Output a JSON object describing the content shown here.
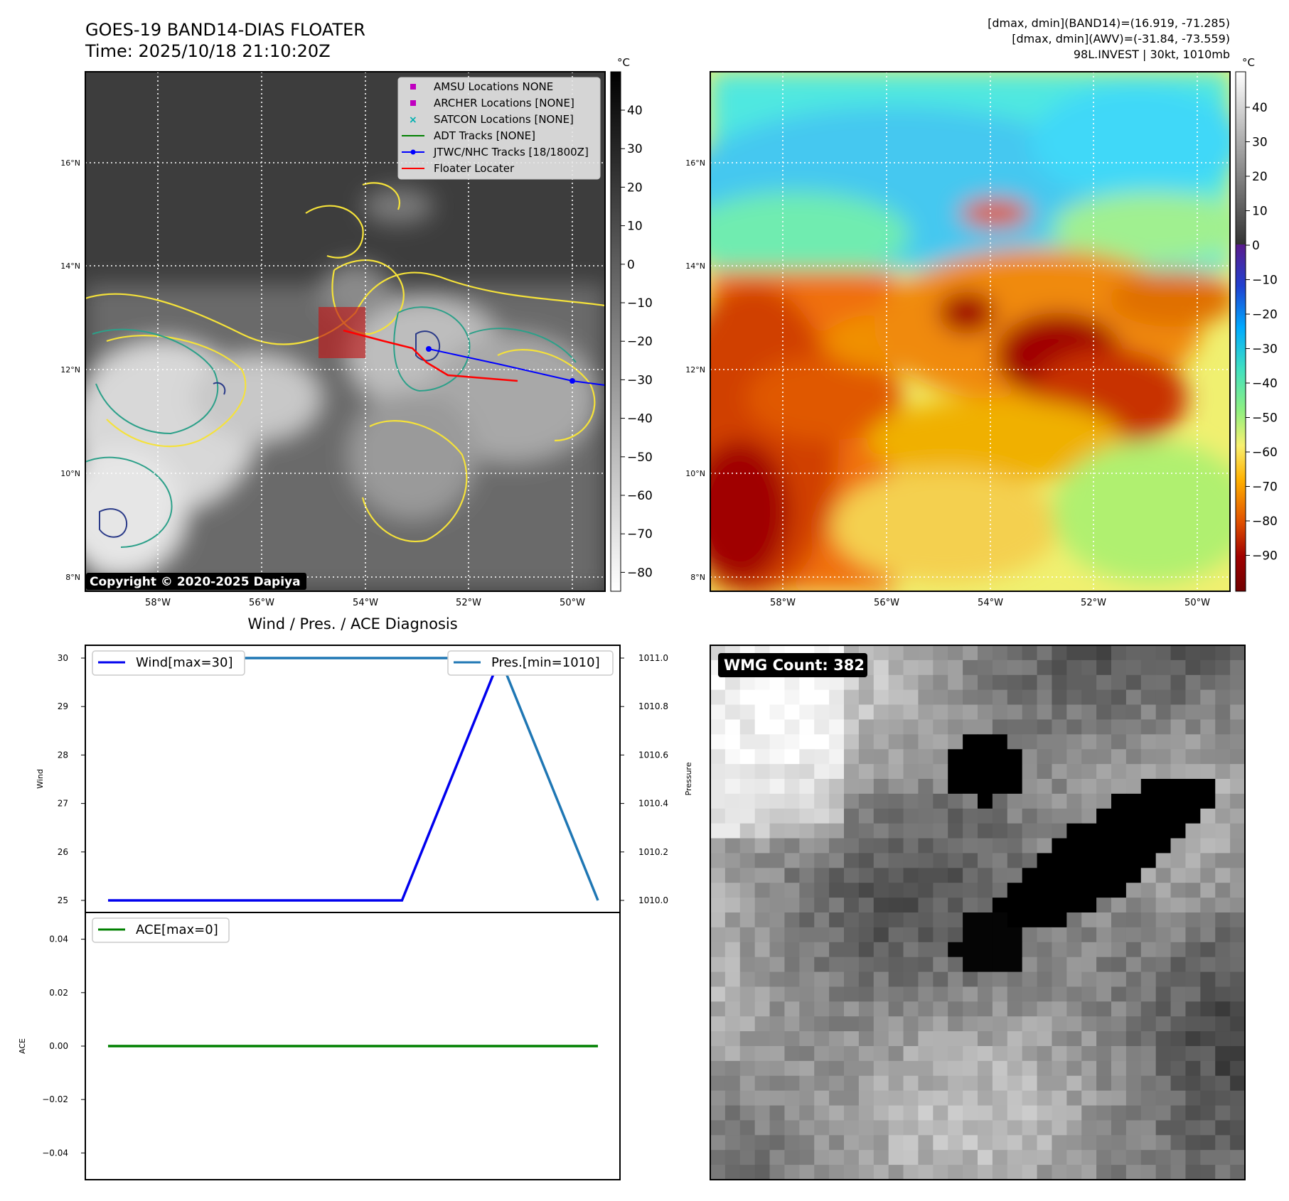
{
  "header": {
    "title_line1": "GOES-19 BAND14-DIAS FLOATER",
    "title_line2": "Time: 2025/10/18 21:10:20Z",
    "info_line1": "[dmax, dmin](BAND14)=(16.919, -71.285)",
    "info_line2": "[dmax, dmin](AWV)=(-31.84, -73.559)",
    "info_line3": "98L.INVEST | 30kt, 1010mb"
  },
  "ir_panel": {
    "colorbar_unit": "°C",
    "colorbar_ticks": [
      "40",
      "30",
      "20",
      "10",
      "0",
      "−10",
      "−20",
      "−30",
      "−40",
      "−50",
      "−60",
      "−70",
      "−80"
    ],
    "lat_labels": [
      "16°N",
      "14°N",
      "12°N",
      "10°N",
      "8°N"
    ],
    "lon_labels": [
      "58°W",
      "56°W",
      "54°W",
      "52°W",
      "50°W"
    ],
    "copyright": "Copyright © 2020-2025 Dapiya",
    "legend": [
      {
        "label": "AMSU Locations NONE",
        "marker": "square",
        "color": "#c000c0"
      },
      {
        "label": "ARCHER Locations [NONE]",
        "marker": "square",
        "color": "#c000c0"
      },
      {
        "label": "SATCON Locations [NONE]",
        "marker": "x",
        "color": "#00b0b0"
      },
      {
        "label": "ADT Tracks [NONE]",
        "marker": "line",
        "color": "#008000"
      },
      {
        "label": "JTWC/NHC Tracks [18/1800Z]",
        "marker": "line-dot",
        "color": "#0000ff"
      },
      {
        "label": "Floater Locater",
        "marker": "line",
        "color": "#ff0000"
      }
    ]
  },
  "awv_panel": {
    "colorbar_unit": "°C",
    "colorbar_ticks": [
      "40",
      "30",
      "20",
      "10",
      "0",
      "−10",
      "−20",
      "−30",
      "−40",
      "−50",
      "−60",
      "−70",
      "−80",
      "−90"
    ],
    "lat_labels": [
      "16°N",
      "14°N",
      "12°N",
      "10°N",
      "8°N"
    ],
    "lon_labels": [
      "58°W",
      "56°W",
      "54°W",
      "52°W",
      "50°W"
    ]
  },
  "wmg_panel": {
    "count_label": "WMG Count: 382"
  },
  "chart_data": [
    {
      "type": "line",
      "title": "Wind / Pres. / ACE Diagnosis",
      "ylabel": "Wind",
      "ylabel_right": "Pressure",
      "ylim": [
        25,
        30
      ],
      "ylim_right": [
        1010.0,
        1011.0
      ],
      "yticks": [
        "25",
        "26",
        "27",
        "28",
        "29",
        "30"
      ],
      "yticks_right": [
        "1010.0",
        "1010.2",
        "1010.4",
        "1010.6",
        "1010.8",
        "1011.0"
      ],
      "series": [
        {
          "name": "Wind[max=30]",
          "axis": "left",
          "color": "#0000ee",
          "x": [
            0,
            1,
            2,
            3,
            4,
            5
          ],
          "values": [
            25,
            25,
            25,
            25,
            30,
            30
          ]
        },
        {
          "name": "Pres.[min=1010]",
          "axis": "right",
          "color": "#1f77b4",
          "x": [
            0,
            1,
            2,
            3,
            4,
            5
          ],
          "values": [
            1011.0,
            1011.0,
            1011.0,
            1011.0,
            1011.0,
            1010.0
          ]
        }
      ]
    },
    {
      "type": "line",
      "ylabel": "ACE",
      "ylim": [
        -0.05,
        0.05
      ],
      "yticks": [
        "0.04",
        "0.02",
        "0.00",
        "−0.02",
        "−0.04"
      ],
      "series": [
        {
          "name": "ACE[max=0]",
          "color": "#008000",
          "x": [
            0,
            1,
            2,
            3,
            4,
            5
          ],
          "values": [
            0,
            0,
            0,
            0,
            0,
            0
          ]
        }
      ]
    }
  ]
}
